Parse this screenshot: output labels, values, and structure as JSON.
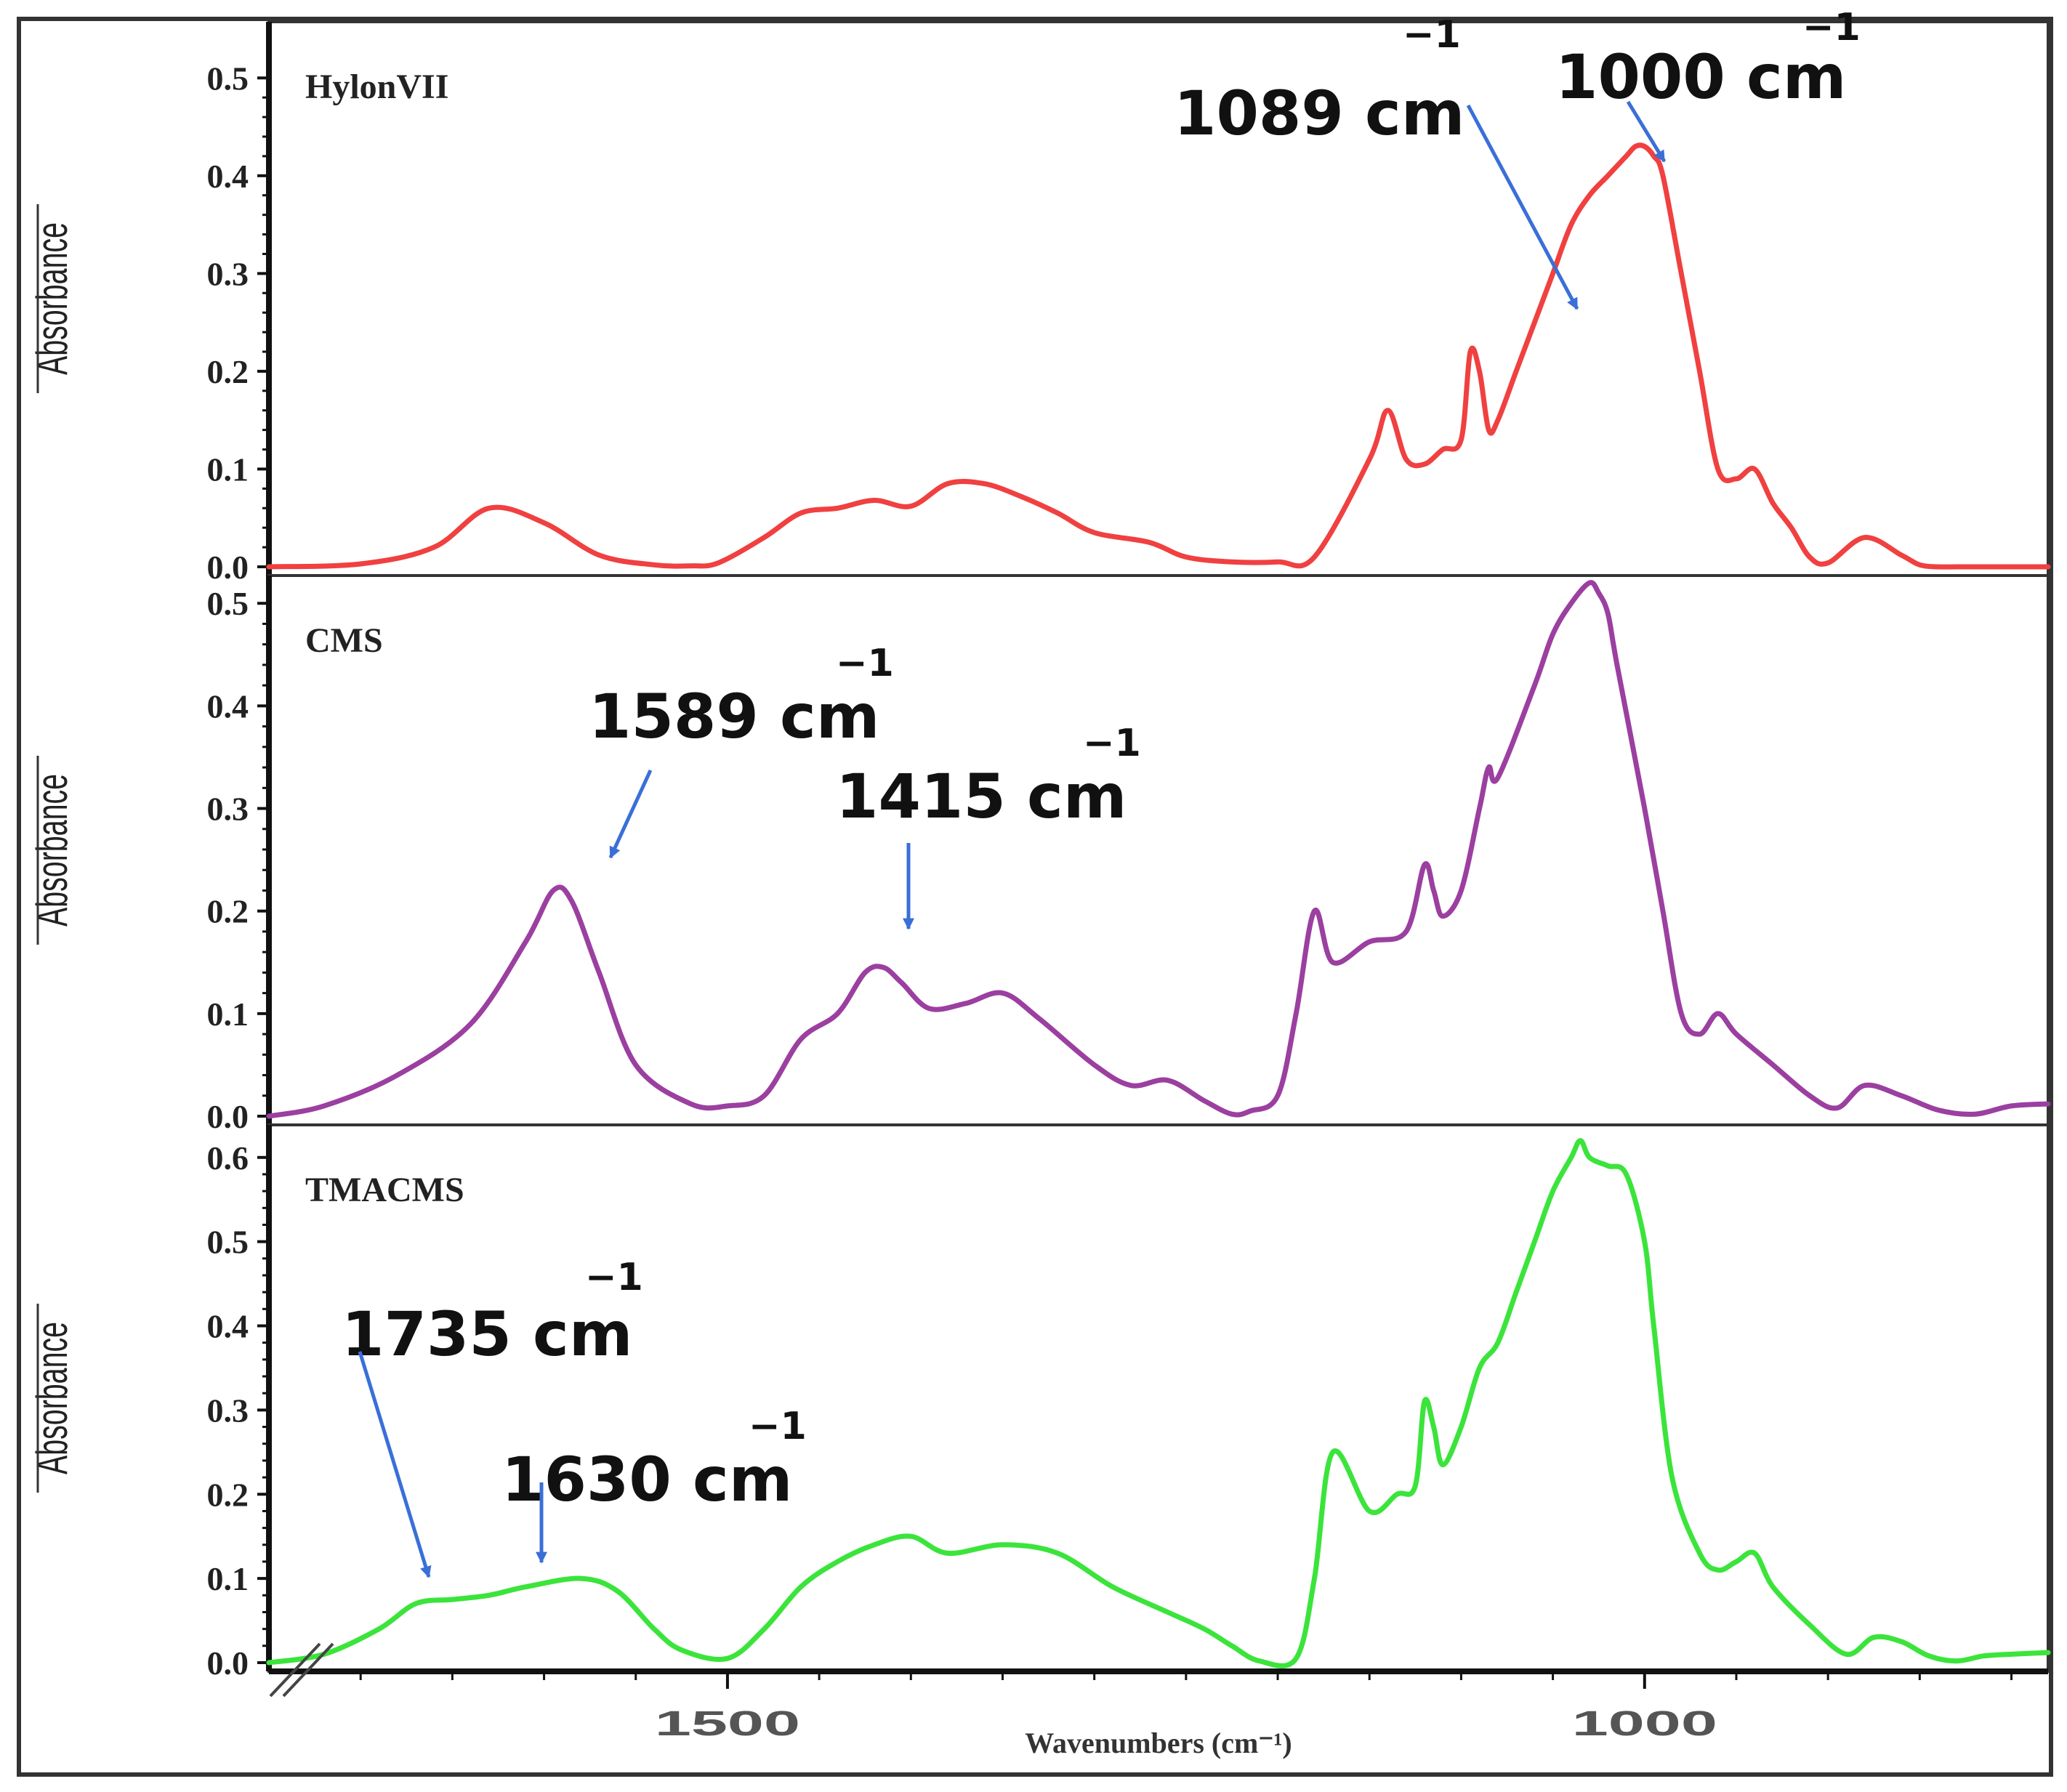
{
  "chart_data": {
    "type": "line",
    "xlabel": "Wavenumbers (cm⁻¹)",
    "ylabel": "Absorbance",
    "xlim": [
      1750,
      780
    ],
    "x_ticks": [
      {
        "value": 1500,
        "label": "1500"
      },
      {
        "value": 1000,
        "label": "1000"
      }
    ],
    "panels": [
      {
        "name": "HylonVII",
        "color": "#f04040",
        "ylim": [
          0.0,
          0.55
        ],
        "y_ticks": [
          "0.0",
          "0.1",
          "0.2",
          "0.3",
          "0.4",
          "0.5"
        ],
        "series": {
          "x": [
            1750,
            1700,
            1660,
            1630,
            1600,
            1570,
            1540,
            1520,
            1505,
            1480,
            1460,
            1440,
            1420,
            1400,
            1380,
            1360,
            1340,
            1320,
            1300,
            1270,
            1250,
            1225,
            1200,
            1180,
            1150,
            1140,
            1130,
            1120,
            1110,
            1100,
            1095,
            1090,
            1085,
            1080,
            1070,
            1060,
            1050,
            1040,
            1030,
            1020,
            1010,
            1005,
            1000,
            995,
            990,
            980,
            970,
            960,
            950,
            940,
            930,
            920,
            910,
            900,
            880,
            860,
            850,
            840,
            830,
            815,
            800,
            780
          ],
          "y": [
            0.0,
            0.003,
            0.02,
            0.06,
            0.045,
            0.012,
            0.002,
            0.001,
            0.004,
            0.03,
            0.055,
            0.06,
            0.068,
            0.062,
            0.085,
            0.085,
            0.072,
            0.055,
            0.035,
            0.025,
            0.01,
            0.005,
            0.005,
            0.01,
            0.11,
            0.16,
            0.11,
            0.105,
            0.12,
            0.13,
            0.22,
            0.2,
            0.14,
            0.15,
            0.2,
            0.25,
            0.3,
            0.35,
            0.38,
            0.4,
            0.42,
            0.43,
            0.43,
            0.42,
            0.4,
            0.3,
            0.2,
            0.1,
            0.09,
            0.1,
            0.065,
            0.04,
            0.01,
            0.004,
            0.03,
            0.012,
            0.002,
            0.0,
            0.0,
            0.0,
            0.0,
            0.0
          ]
        },
        "annotations": [
          {
            "value": "1089",
            "unit": "cm",
            "sup": "−1"
          },
          {
            "value": "1000",
            "unit": "cm",
            "sup": "−1"
          }
        ]
      },
      {
        "name": "CMS",
        "color": "#9b3fa0",
        "ylim": [
          0.0,
          0.52
        ],
        "y_ticks": [
          "0.0",
          "0.1",
          "0.2",
          "0.3",
          "0.4",
          "0.5"
        ],
        "series": {
          "x": [
            1750,
            1720,
            1680,
            1640,
            1610,
            1595,
            1585,
            1570,
            1550,
            1520,
            1500,
            1480,
            1460,
            1440,
            1425,
            1415,
            1405,
            1390,
            1370,
            1350,
            1330,
            1300,
            1280,
            1260,
            1240,
            1225,
            1215,
            1200,
            1190,
            1180,
            1170,
            1150,
            1130,
            1120,
            1115,
            1110,
            1100,
            1090,
            1085,
            1080,
            1060,
            1050,
            1040,
            1030,
            1025,
            1020,
            1015,
            1000,
            990,
            980,
            970,
            960,
            950,
            930,
            910,
            895,
            880,
            860,
            840,
            820,
            800,
            780
          ],
          "y": [
            0.0,
            0.01,
            0.04,
            0.09,
            0.17,
            0.22,
            0.21,
            0.14,
            0.05,
            0.012,
            0.01,
            0.02,
            0.075,
            0.1,
            0.14,
            0.145,
            0.13,
            0.105,
            0.11,
            0.12,
            0.095,
            0.05,
            0.03,
            0.035,
            0.015,
            0.002,
            0.005,
            0.02,
            0.1,
            0.2,
            0.15,
            0.17,
            0.18,
            0.245,
            0.22,
            0.195,
            0.22,
            0.3,
            0.34,
            0.33,
            0.42,
            0.47,
            0.5,
            0.52,
            0.51,
            0.49,
            0.44,
            0.3,
            0.2,
            0.1,
            0.08,
            0.1,
            0.08,
            0.05,
            0.02,
            0.008,
            0.03,
            0.02,
            0.006,
            0.002,
            0.01,
            0.012
          ]
        },
        "annotations": [
          {
            "value": "1589",
            "unit": "cm",
            "sup": "−1"
          },
          {
            "value": "1415",
            "unit": "cm",
            "sup": "−1"
          }
        ]
      },
      {
        "name": "TMACMS",
        "color": "#3be43b",
        "ylim": [
          0.0,
          0.63
        ],
        "y_ticks": [
          "0.0",
          "0.1",
          "0.2",
          "0.3",
          "0.4",
          "0.5",
          "0.6"
        ],
        "series": {
          "x": [
            1750,
            1720,
            1690,
            1670,
            1650,
            1630,
            1610,
            1580,
            1560,
            1540,
            1525,
            1500,
            1480,
            1460,
            1440,
            1420,
            1400,
            1380,
            1350,
            1320,
            1290,
            1260,
            1240,
            1225,
            1210,
            1190,
            1180,
            1170,
            1150,
            1135,
            1125,
            1120,
            1115,
            1110,
            1100,
            1090,
            1080,
            1070,
            1060,
            1050,
            1040,
            1035,
            1030,
            1020,
            1010,
            1000,
            995,
            985,
            970,
            960,
            950,
            940,
            930,
            910,
            890,
            875,
            860,
            845,
            830,
            815,
            800,
            780
          ],
          "y": [
            0.0,
            0.01,
            0.04,
            0.07,
            0.075,
            0.08,
            0.09,
            0.1,
            0.085,
            0.04,
            0.015,
            0.005,
            0.04,
            0.09,
            0.12,
            0.14,
            0.15,
            0.13,
            0.14,
            0.13,
            0.09,
            0.06,
            0.04,
            0.02,
            0.002,
            0.005,
            0.1,
            0.25,
            0.18,
            0.2,
            0.21,
            0.31,
            0.28,
            0.235,
            0.28,
            0.35,
            0.38,
            0.44,
            0.5,
            0.56,
            0.6,
            0.62,
            0.6,
            0.59,
            0.58,
            0.5,
            0.4,
            0.22,
            0.13,
            0.11,
            0.12,
            0.13,
            0.09,
            0.045,
            0.01,
            0.03,
            0.025,
            0.008,
            0.002,
            0.008,
            0.01,
            0.012
          ]
        },
        "annotations": [
          {
            "value": "1735",
            "unit": "cm",
            "sup": "−1"
          },
          {
            "value": "1630",
            "unit": "cm",
            "sup": "−1"
          }
        ]
      }
    ]
  }
}
